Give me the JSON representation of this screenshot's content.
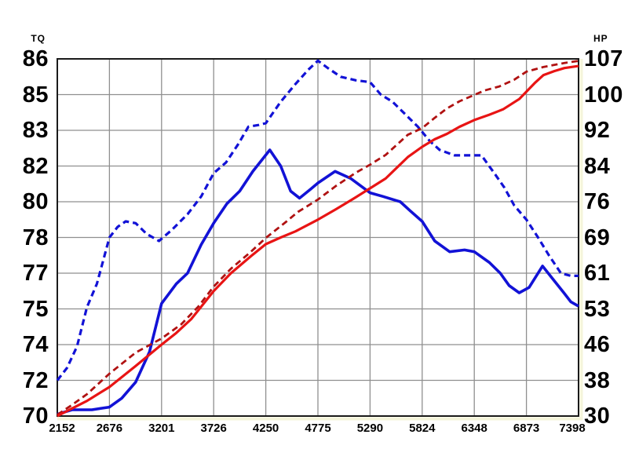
{
  "chart_data": {
    "type": "line",
    "title": "",
    "grid": true,
    "x_axis": {
      "label": "",
      "ticks": [
        2152,
        2676,
        3201,
        3726,
        4250,
        4775,
        5290,
        5824,
        6348,
        6873,
        7398
      ]
    },
    "left_axis": {
      "label": "TQ",
      "ticks": [
        86,
        85,
        83,
        82,
        80,
        78,
        77,
        75,
        74,
        72,
        70
      ]
    },
    "right_axis": {
      "label": "HP",
      "ticks": [
        107,
        100,
        92,
        84,
        76,
        69,
        61,
        53,
        46,
        38,
        30
      ]
    },
    "colors": {
      "grid": "#8f8f8f",
      "border": "#1a1a1a",
      "edge_strip": "#f4f4da",
      "torque_blue": "#1212d6",
      "hp_red_solid": "#e81414",
      "hp_red_dashed": "#b01212"
    },
    "series": [
      {
        "name": "tq-dashed",
        "axis": "left",
        "style": "dashed",
        "color": "#1212d6",
        "width": 3.2,
        "points": [
          [
            2152,
            72.0
          ],
          [
            2250,
            72.7
          ],
          [
            2350,
            73.9
          ],
          [
            2450,
            75.1
          ],
          [
            2550,
            76.4
          ],
          [
            2676,
            78.0
          ],
          [
            2760,
            78.6
          ],
          [
            2840,
            78.9
          ],
          [
            2940,
            78.8
          ],
          [
            3050,
            78.2
          ],
          [
            3175,
            77.9
          ],
          [
            3300,
            78.4
          ],
          [
            3463,
            79.3
          ],
          [
            3600,
            80.3
          ],
          [
            3726,
            81.6
          ],
          [
            3850,
            82.1
          ],
          [
            3970,
            82.6
          ],
          [
            4075,
            83.2
          ],
          [
            4180,
            83.3
          ],
          [
            4250,
            83.4
          ],
          [
            4400,
            84.6
          ],
          [
            4550,
            85.3
          ],
          [
            4680,
            85.7
          ],
          [
            4775,
            85.95
          ],
          [
            4870,
            85.75
          ],
          [
            5000,
            85.5
          ],
          [
            5150,
            85.4
          ],
          [
            5290,
            85.35
          ],
          [
            5400,
            85.0
          ],
          [
            5520,
            84.6
          ],
          [
            5650,
            83.9
          ],
          [
            5780,
            83.2
          ],
          [
            5900,
            82.7
          ],
          [
            6000,
            82.45
          ],
          [
            6150,
            82.3
          ],
          [
            6300,
            82.3
          ],
          [
            6420,
            82.3
          ],
          [
            6550,
            81.6
          ],
          [
            6650,
            80.8
          ],
          [
            6750,
            79.8
          ],
          [
            6873,
            79.0
          ],
          [
            6990,
            78.0
          ],
          [
            7100,
            77.5
          ],
          [
            7220,
            77.0
          ],
          [
            7320,
            76.85
          ],
          [
            7398,
            76.85
          ]
        ]
      },
      {
        "name": "tq-solid",
        "axis": "left",
        "style": "solid",
        "color": "#1212d6",
        "width": 3.6,
        "points": [
          [
            2152,
            70.1
          ],
          [
            2300,
            70.35
          ],
          [
            2500,
            70.35
          ],
          [
            2676,
            70.5
          ],
          [
            2800,
            71.0
          ],
          [
            2940,
            71.9
          ],
          [
            3080,
            73.6
          ],
          [
            3201,
            75.3
          ],
          [
            3350,
            76.4
          ],
          [
            3463,
            77.0
          ],
          [
            3600,
            77.8
          ],
          [
            3726,
            78.8
          ],
          [
            3860,
            79.9
          ],
          [
            3988,
            80.6
          ],
          [
            4120,
            81.7
          ],
          [
            4290,
            82.45
          ],
          [
            4400,
            82.0
          ],
          [
            4500,
            80.6
          ],
          [
            4590,
            80.2
          ],
          [
            4700,
            80.7
          ],
          [
            4775,
            81.05
          ],
          [
            4945,
            81.7
          ],
          [
            5100,
            81.3
          ],
          [
            5290,
            80.5
          ],
          [
            5420,
            80.3
          ],
          [
            5600,
            80.0
          ],
          [
            5700,
            79.5
          ],
          [
            5824,
            78.9
          ],
          [
            5950,
            77.9
          ],
          [
            6100,
            77.6
          ],
          [
            6250,
            77.65
          ],
          [
            6348,
            77.6
          ],
          [
            6500,
            77.3
          ],
          [
            6610,
            77.0
          ],
          [
            6700,
            76.3
          ],
          [
            6800,
            75.9
          ],
          [
            6900,
            76.2
          ],
          [
            7035,
            77.2
          ],
          [
            7150,
            76.6
          ],
          [
            7250,
            75.9
          ],
          [
            7320,
            75.4
          ],
          [
            7398,
            75.15
          ]
        ]
      },
      {
        "name": "hp-dashed",
        "axis": "right",
        "style": "dashed",
        "color": "#b01212",
        "width": 2.8,
        "points": [
          [
            2152,
            30.3
          ],
          [
            2300,
            32.5
          ],
          [
            2450,
            34.9
          ],
          [
            2676,
            39.5
          ],
          [
            2940,
            44.2
          ],
          [
            3201,
            47.2
          ],
          [
            3400,
            50.0
          ],
          [
            3570,
            53.5
          ],
          [
            3726,
            58.0
          ],
          [
            3900,
            62.0
          ],
          [
            4100,
            65.8
          ],
          [
            4250,
            68.9
          ],
          [
            4450,
            72.0
          ],
          [
            4573,
            74.0
          ],
          [
            4775,
            76.5
          ],
          [
            4950,
            79.5
          ],
          [
            5150,
            82.5
          ],
          [
            5290,
            84.3
          ],
          [
            5450,
            86.5
          ],
          [
            5677,
            91.0
          ],
          [
            5824,
            92.5
          ],
          [
            5950,
            94.8
          ],
          [
            6073,
            96.9
          ],
          [
            6200,
            98.5
          ],
          [
            6335,
            99.8
          ],
          [
            6450,
            100.8
          ],
          [
            6600,
            101.6
          ],
          [
            6750,
            102.9
          ],
          [
            6873,
            104.5
          ],
          [
            7043,
            105.4
          ],
          [
            7150,
            105.8
          ],
          [
            7256,
            106.2
          ],
          [
            7398,
            106.6
          ]
        ]
      },
      {
        "name": "hp-solid",
        "axis": "right",
        "style": "solid",
        "color": "#e81414",
        "width": 3.2,
        "points": [
          [
            2152,
            30.0
          ],
          [
            2300,
            31.7
          ],
          [
            2450,
            33.4
          ],
          [
            2676,
            36.5
          ],
          [
            2940,
            41.2
          ],
          [
            3201,
            46.0
          ],
          [
            3350,
            48.3
          ],
          [
            3500,
            51.0
          ],
          [
            3726,
            57.0
          ],
          [
            3900,
            61.0
          ],
          [
            4100,
            64.8
          ],
          [
            4250,
            67.5
          ],
          [
            4400,
            69.0
          ],
          [
            4550,
            70.2
          ],
          [
            4775,
            72.5
          ],
          [
            4950,
            74.5
          ],
          [
            5150,
            77.0
          ],
          [
            5290,
            79.0
          ],
          [
            5450,
            81.2
          ],
          [
            5677,
            86.0
          ],
          [
            5824,
            88.3
          ],
          [
            5950,
            90.0
          ],
          [
            6073,
            91.2
          ],
          [
            6200,
            92.8
          ],
          [
            6348,
            94.3
          ],
          [
            6500,
            95.5
          ],
          [
            6637,
            96.7
          ],
          [
            6800,
            99.0
          ],
          [
            6964,
            102.4
          ],
          [
            7043,
            103.8
          ],
          [
            7153,
            104.6
          ],
          [
            7256,
            105.2
          ],
          [
            7398,
            105.6
          ]
        ]
      }
    ]
  }
}
